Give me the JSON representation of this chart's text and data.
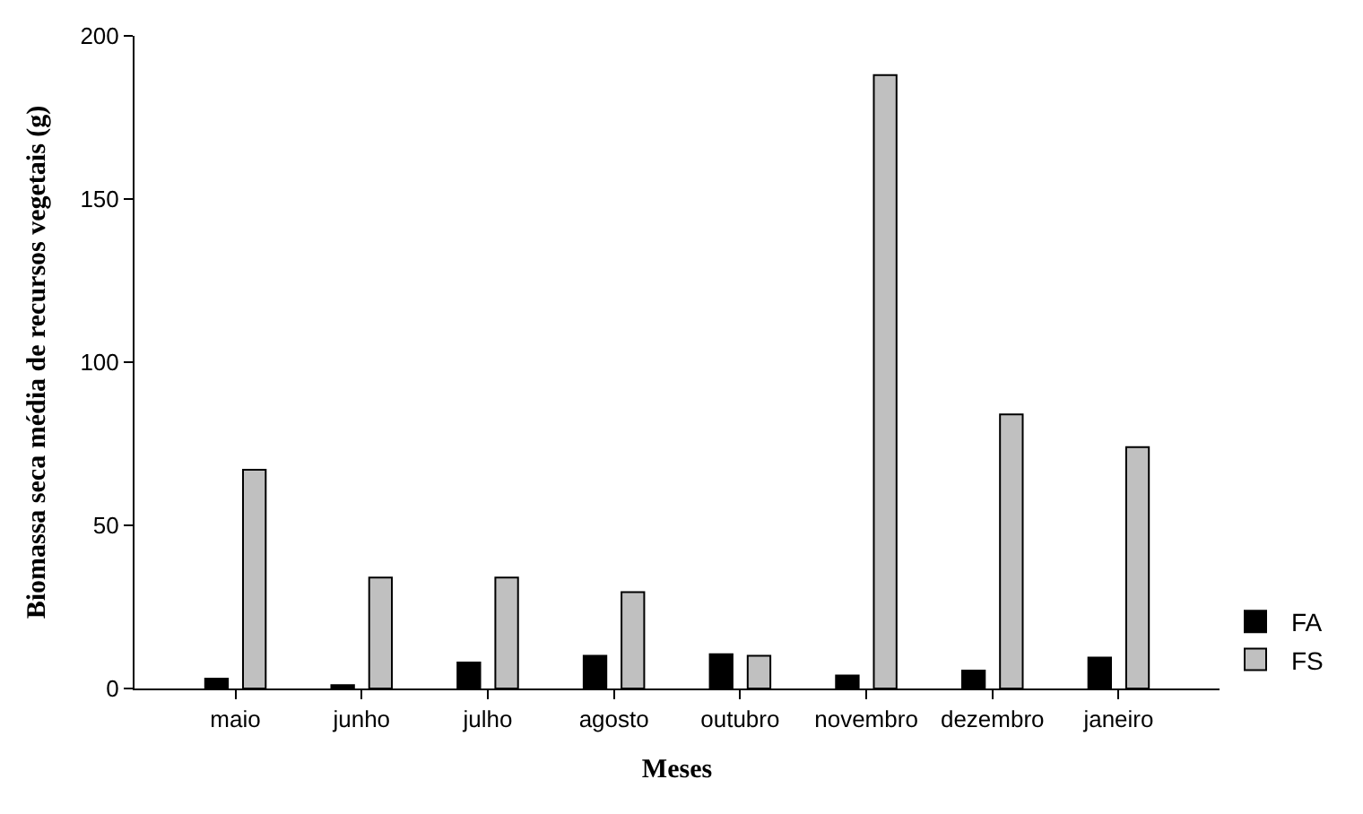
{
  "chart_data": {
    "type": "bar",
    "xlabel": "Meses",
    "ylabel": "Biomassa seca média de recursos vegetais (g)",
    "categories": [
      "maio",
      "junho",
      "julho",
      "agosto",
      "outubro",
      "novembro",
      "dezembro",
      "janeiro"
    ],
    "series": [
      {
        "name": "FA",
        "color": "#000000",
        "values": [
          3,
          1,
          8,
          10,
          10.5,
          4,
          5.5,
          9.5
        ]
      },
      {
        "name": "FS",
        "color": "#c0c0c0",
        "values": [
          67,
          34,
          34,
          29.5,
          10,
          188,
          84,
          74
        ]
      }
    ],
    "ylim": [
      0,
      200
    ],
    "yticks": [
      0,
      50,
      100,
      150,
      200
    ],
    "legend": "bottom right"
  }
}
